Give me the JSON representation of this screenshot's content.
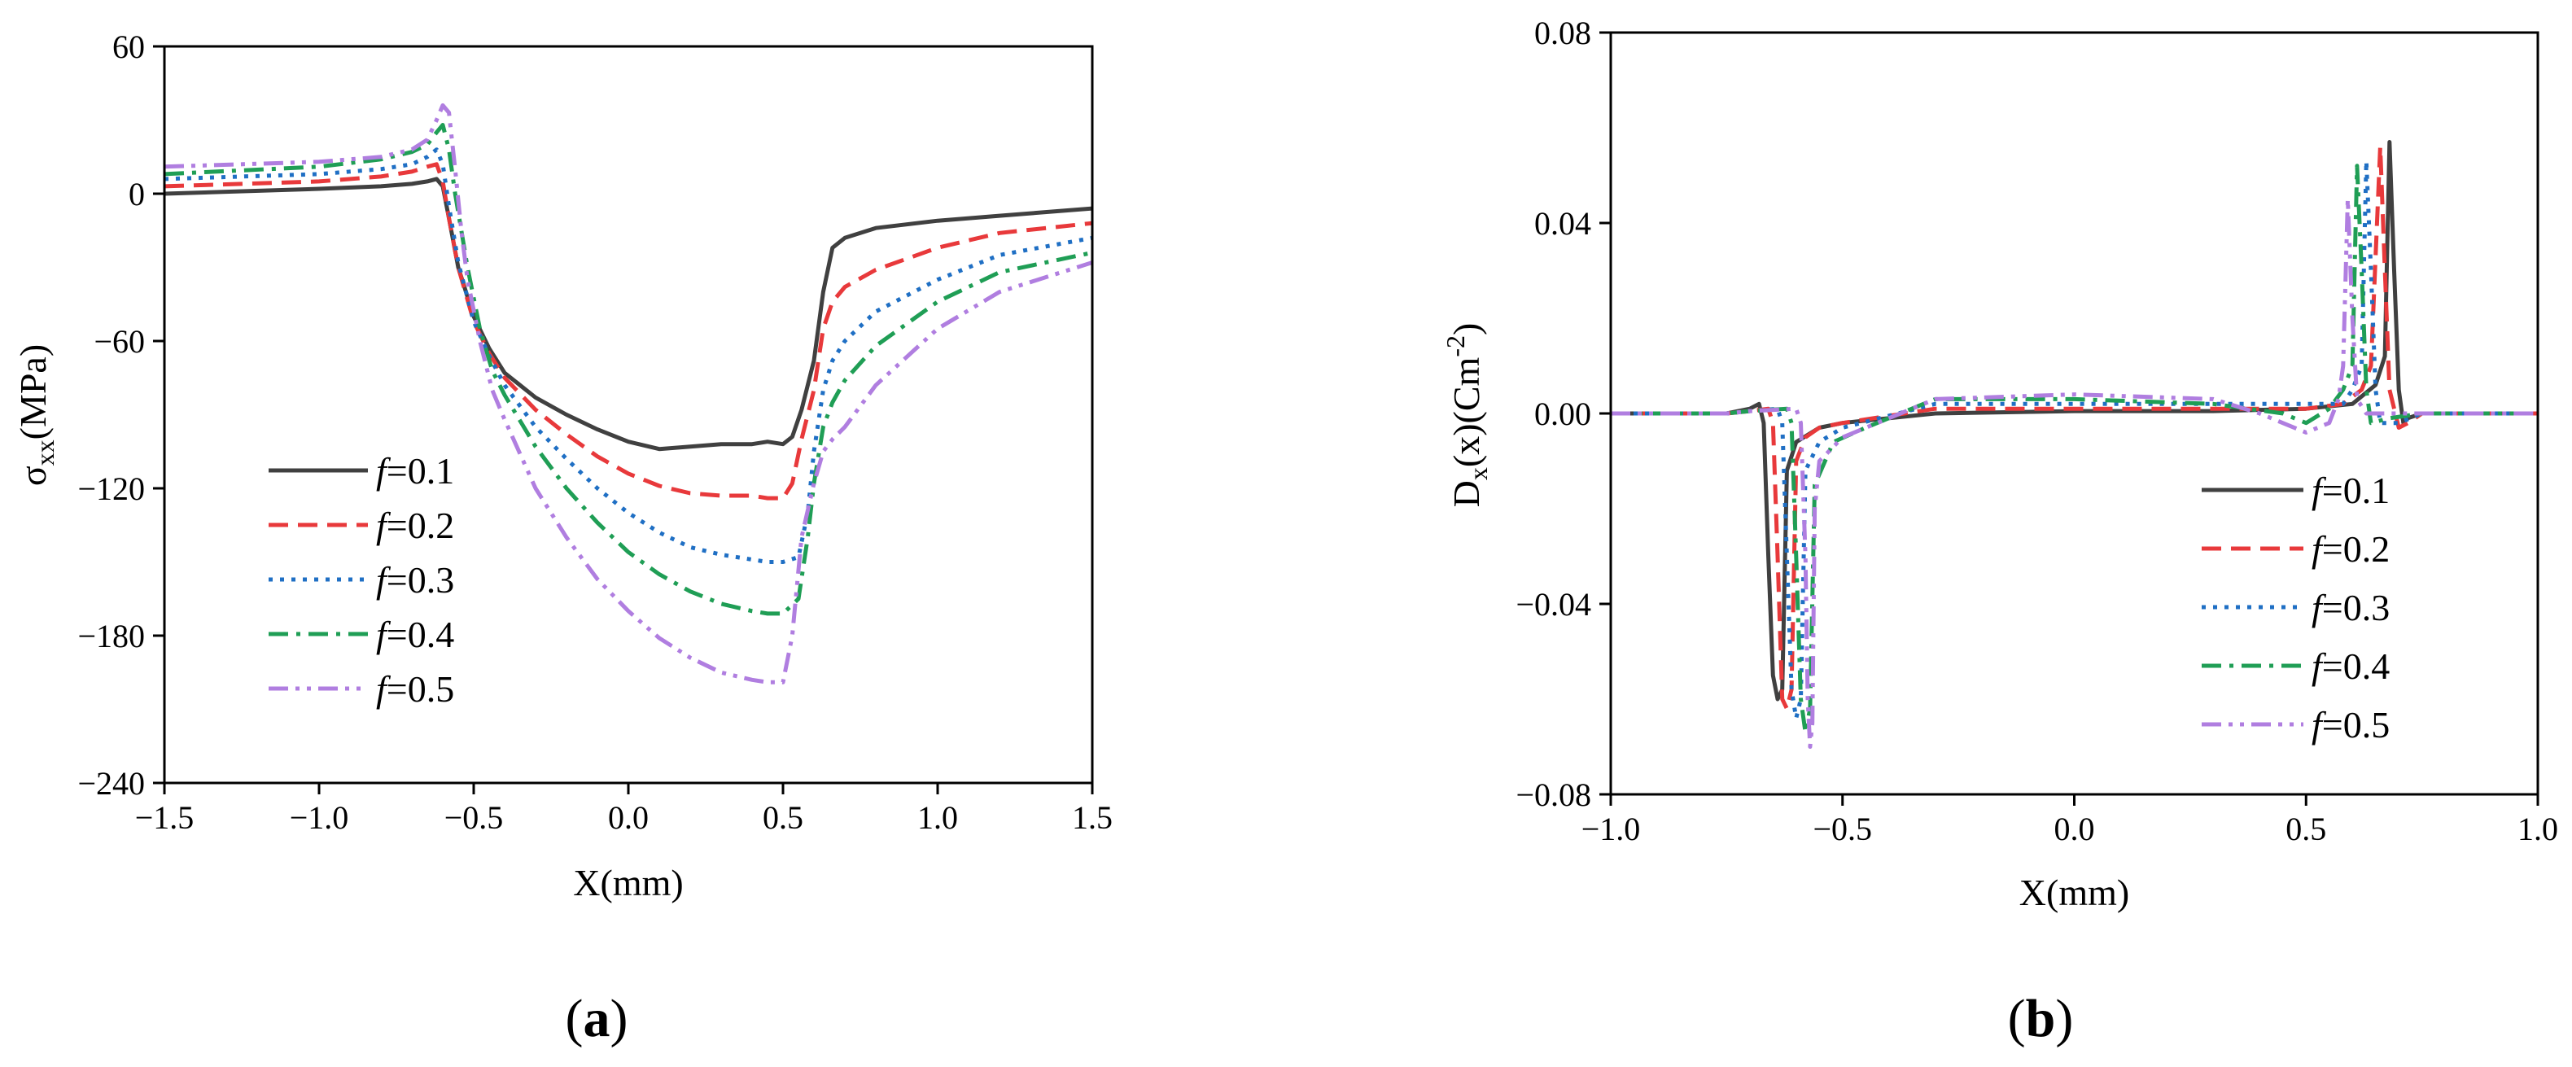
{
  "chart_data": [
    {
      "type": "line",
      "panel": "(a)",
      "panel_letter": "a",
      "xlabel": "X(mm)",
      "ylabel": {
        "main": "σ",
        "sub": "xx",
        "rest": "(MPa)"
      },
      "xlim": [
        -1.5,
        1.5
      ],
      "ylim": [
        -240,
        60
      ],
      "xticks": [
        -1.5,
        -1.0,
        -0.5,
        0.0,
        0.5,
        1.0,
        1.5
      ],
      "xtick_labels": [
        "−1.5",
        "−1.0",
        "−0.5",
        "0.0",
        "0.5",
        "1.0",
        "1.5"
      ],
      "yticks": [
        60,
        0,
        -60,
        -120,
        -180,
        -240
      ],
      "ytick_labels": [
        "60",
        "0",
        "−60",
        "−120",
        "−180",
        "−240"
      ],
      "legend_position": "lower-left",
      "series": [
        {
          "name": "f=0.1",
          "var": "f",
          "val": "=0.1",
          "color": "#404040",
          "dash": "solid",
          "x": [
            -1.5,
            -1.0,
            -0.8,
            -0.7,
            -0.65,
            -0.62,
            -0.6,
            -0.58,
            -0.55,
            -0.5,
            -0.45,
            -0.4,
            -0.3,
            -0.2,
            -0.1,
            0.0,
            0.1,
            0.2,
            0.3,
            0.4,
            0.45,
            0.5,
            0.53,
            0.56,
            0.6,
            0.63,
            0.66,
            0.7,
            0.8,
            1.0,
            1.2,
            1.5
          ],
          "y": [
            0,
            2,
            3,
            4,
            5,
            6,
            3,
            -10,
            -30,
            -50,
            -63,
            -73,
            -83,
            -90,
            -96,
            -101,
            -104,
            -103,
            -102,
            -102,
            -101,
            -102,
            -99,
            -88,
            -68,
            -40,
            -22,
            -18,
            -14,
            -11,
            -9,
            -6
          ]
        },
        {
          "name": "f=0.2",
          "var": "f",
          "val": "=0.2",
          "color": "#e8393b",
          "dash": "dashed",
          "x": [
            -1.5,
            -1.0,
            -0.8,
            -0.7,
            -0.65,
            -0.62,
            -0.6,
            -0.58,
            -0.55,
            -0.5,
            -0.45,
            -0.4,
            -0.3,
            -0.2,
            -0.1,
            0.0,
            0.1,
            0.2,
            0.3,
            0.4,
            0.45,
            0.5,
            0.53,
            0.56,
            0.6,
            0.63,
            0.66,
            0.7,
            0.8,
            1.0,
            1.2,
            1.5
          ],
          "y": [
            3,
            5,
            7,
            9,
            11,
            12,
            5,
            -10,
            -30,
            -52,
            -65,
            -75,
            -88,
            -98,
            -107,
            -114,
            -119,
            -122,
            -123,
            -123,
            -124,
            -124,
            -118,
            -100,
            -80,
            -55,
            -44,
            -38,
            -31,
            -22,
            -16,
            -12
          ]
        },
        {
          "name": "f=0.3",
          "var": "f",
          "val": "=0.3",
          "color": "#1f6fc4",
          "dash": "dotted",
          "x": [
            -1.5,
            -1.0,
            -0.8,
            -0.7,
            -0.65,
            -0.62,
            -0.6,
            -0.58,
            -0.55,
            -0.5,
            -0.45,
            -0.4,
            -0.3,
            -0.2,
            -0.1,
            0.0,
            0.1,
            0.2,
            0.3,
            0.4,
            0.45,
            0.5,
            0.55,
            0.58,
            0.6,
            0.63,
            0.66,
            0.7,
            0.8,
            1.0,
            1.2,
            1.5
          ],
          "y": [
            6,
            8,
            10,
            12,
            15,
            18,
            12,
            -5,
            -28,
            -52,
            -66,
            -78,
            -95,
            -108,
            -120,
            -130,
            -138,
            -144,
            -147,
            -149,
            -150,
            -150,
            -148,
            -130,
            -105,
            -80,
            -68,
            -60,
            -48,
            -35,
            -25,
            -18
          ]
        },
        {
          "name": "f=0.4",
          "var": "f",
          "val": "=0.4",
          "color": "#1f9e55",
          "dash": "dashdot",
          "x": [
            -1.5,
            -1.0,
            -0.8,
            -0.7,
            -0.65,
            -0.62,
            -0.6,
            -0.58,
            -0.56,
            -0.52,
            -0.48,
            -0.44,
            -0.4,
            -0.3,
            -0.2,
            -0.1,
            0.0,
            0.1,
            0.2,
            0.3,
            0.4,
            0.45,
            0.5,
            0.55,
            0.58,
            0.6,
            0.63,
            0.66,
            0.7,
            0.8,
            1.0,
            1.2,
            1.5
          ],
          "y": [
            8,
            11,
            14,
            17,
            20,
            25,
            28,
            18,
            0,
            -30,
            -55,
            -72,
            -82,
            -103,
            -120,
            -134,
            -146,
            -155,
            -162,
            -167,
            -170,
            -171,
            -171,
            -165,
            -140,
            -118,
            -95,
            -85,
            -76,
            -62,
            -44,
            -32,
            -24
          ]
        },
        {
          "name": "f=0.5",
          "var": "f",
          "val": "=0.5",
          "color": "#b07ee0",
          "dash": "dashdotdot",
          "x": [
            -1.5,
            -1.0,
            -0.8,
            -0.7,
            -0.65,
            -0.62,
            -0.6,
            -0.58,
            -0.56,
            -0.54,
            -0.52,
            -0.48,
            -0.44,
            -0.4,
            -0.3,
            -0.2,
            -0.1,
            0.0,
            0.1,
            0.2,
            0.3,
            0.4,
            0.45,
            0.5,
            0.53,
            0.56,
            0.6,
            0.63,
            0.66,
            0.7,
            0.8,
            1.0,
            1.2,
            1.5
          ],
          "y": [
            11,
            13,
            15,
            18,
            22,
            30,
            36,
            33,
            10,
            -15,
            -35,
            -60,
            -80,
            -92,
            -120,
            -140,
            -157,
            -170,
            -181,
            -189,
            -195,
            -198,
            -199,
            -199,
            -180,
            -140,
            -118,
            -105,
            -100,
            -95,
            -78,
            -55,
            -40,
            -28
          ]
        }
      ]
    },
    {
      "type": "line",
      "panel": "(b)",
      "panel_letter": "b",
      "xlabel": "X(mm)",
      "ylabel": {
        "main": "D",
        "sub": "x",
        "mid": "(x)(Cm",
        "sup": "-2",
        "end": ")"
      },
      "xlim": [
        -1.0,
        1.0
      ],
      "ylim": [
        -0.08,
        0.08
      ],
      "xticks": [
        -1.0,
        -0.5,
        0.0,
        0.5,
        1.0
      ],
      "xtick_labels": [
        "−1.0",
        "−0.5",
        "0.0",
        "0.5",
        "1.0"
      ],
      "yticks": [
        0.08,
        0.04,
        0.0,
        -0.04,
        -0.08
      ],
      "ytick_labels": [
        "0.08",
        "0.04",
        "0.00",
        "−0.04",
        "−0.08"
      ],
      "legend_position": "lower-right",
      "series": [
        {
          "name": "f=0.1",
          "var": "f",
          "val": "=0.1",
          "color": "#404040",
          "dash": "solid",
          "x": [
            -1.0,
            -0.75,
            -0.7,
            -0.68,
            -0.67,
            -0.66,
            -0.65,
            -0.64,
            -0.63,
            -0.62,
            -0.6,
            -0.55,
            -0.5,
            -0.3,
            0.0,
            0.3,
            0.5,
            0.6,
            0.65,
            0.67,
            0.68,
            0.69,
            0.7,
            0.71,
            0.72,
            0.75,
            0.8,
            1.0
          ],
          "y": [
            0,
            0,
            0.001,
            0.002,
            -0.002,
            -0.03,
            -0.055,
            -0.06,
            -0.058,
            -0.012,
            -0.006,
            -0.003,
            -0.002,
            0.0,
            0.0005,
            0.0005,
            0.001,
            0.002,
            0.006,
            0.012,
            0.057,
            0.03,
            0.005,
            -0.002,
            -0.001,
            0,
            0,
            0
          ]
        },
        {
          "name": "f=0.2",
          "var": "f",
          "val": "=0.2",
          "color": "#e8393b",
          "dash": "dashed",
          "x": [
            -1.0,
            -0.75,
            -0.7,
            -0.66,
            -0.65,
            -0.64,
            -0.63,
            -0.62,
            -0.61,
            -0.6,
            -0.58,
            -0.55,
            -0.5,
            -0.3,
            0.0,
            0.3,
            0.5,
            0.58,
            0.62,
            0.64,
            0.66,
            0.67,
            0.68,
            0.7,
            0.72,
            0.75,
            0.8,
            1.0
          ],
          "y": [
            0,
            0,
            0.0005,
            0.001,
            -0.002,
            -0.03,
            -0.06,
            -0.062,
            -0.058,
            -0.01,
            -0.005,
            -0.003,
            -0.002,
            0.001,
            0.001,
            0.001,
            0.001,
            0.002,
            0.005,
            0.01,
            0.056,
            0.03,
            0.005,
            -0.003,
            -0.002,
            0,
            0,
            0
          ]
        },
        {
          "name": "f=0.3",
          "var": "f",
          "val": "=0.3",
          "color": "#1f6fc4",
          "dash": "dotted",
          "x": [
            -1.0,
            -0.75,
            -0.7,
            -0.64,
            -0.63,
            -0.62,
            -0.61,
            -0.6,
            -0.59,
            -0.58,
            -0.55,
            -0.5,
            -0.3,
            0.0,
            0.3,
            0.5,
            0.58,
            0.6,
            0.62,
            0.63,
            0.64,
            0.65,
            0.66,
            0.7,
            0.75,
            0.8,
            1.0
          ],
          "y": [
            0,
            0,
            0.0005,
            0.001,
            -0.002,
            -0.03,
            -0.058,
            -0.064,
            -0.06,
            -0.012,
            -0.006,
            -0.003,
            0.002,
            0.002,
            0.002,
            0.002,
            0.002,
            0.005,
            0.01,
            0.053,
            0.03,
            0.005,
            -0.002,
            -0.002,
            0,
            0,
            0
          ]
        },
        {
          "name": "f=0.4",
          "var": "f",
          "val": "=0.4",
          "color": "#1f9e55",
          "dash": "dashdot",
          "x": [
            -1.0,
            -0.75,
            -0.7,
            -0.62,
            -0.61,
            -0.6,
            -0.59,
            -0.58,
            -0.57,
            -0.56,
            -0.52,
            -0.45,
            -0.3,
            0.0,
            0.3,
            0.45,
            0.5,
            0.55,
            0.58,
            0.6,
            0.61,
            0.62,
            0.63,
            0.64,
            0.68,
            0.75,
            1.0
          ],
          "y": [
            0,
            0,
            0.0005,
            0.001,
            -0.002,
            -0.03,
            -0.06,
            -0.067,
            -0.062,
            -0.015,
            -0.006,
            -0.003,
            0.003,
            0.003,
            0.002,
            0.0,
            -0.002,
            0.001,
            0.005,
            0.01,
            0.052,
            0.03,
            0.005,
            -0.002,
            -0.001,
            0,
            0
          ]
        },
        {
          "name": "f=0.5",
          "var": "f",
          "val": "=0.5",
          "color": "#b07ee0",
          "dash": "dashdotdot",
          "x": [
            -1.0,
            -0.75,
            -0.7,
            -0.6,
            -0.59,
            -0.58,
            -0.575,
            -0.57,
            -0.565,
            -0.56,
            -0.55,
            -0.5,
            -0.3,
            0.0,
            0.3,
            0.4,
            0.5,
            0.55,
            0.57,
            0.58,
            0.59,
            0.6,
            0.61,
            0.63,
            0.68,
            0.75,
            1.0
          ],
          "y": [
            0,
            0,
            0.0005,
            0.001,
            -0.002,
            -0.03,
            -0.06,
            -0.07,
            -0.065,
            -0.02,
            -0.01,
            -0.005,
            0.003,
            0.004,
            0.003,
            0.0,
            -0.004,
            -0.002,
            0.003,
            0.01,
            0.045,
            0.02,
            0.003,
            0,
            0,
            0,
            0
          ]
        }
      ]
    }
  ]
}
